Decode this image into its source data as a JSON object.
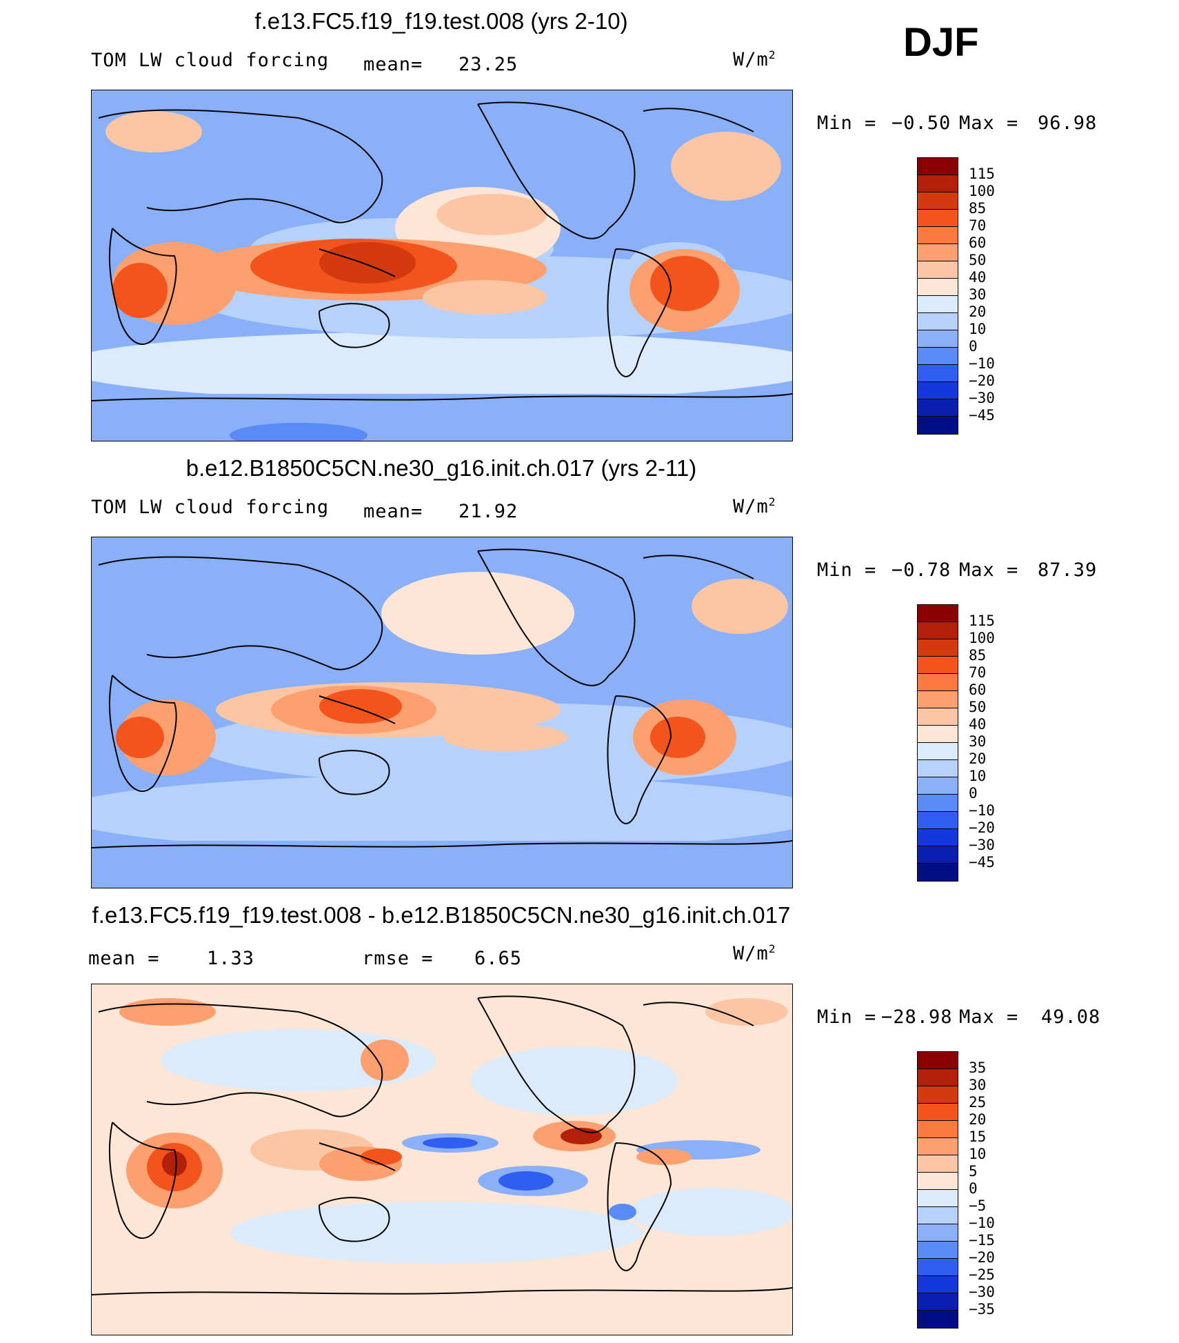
{
  "season": "DJF",
  "unit": "W/m",
  "unit_exp": "2",
  "panels": [
    {
      "title": "f.e13.FC5.f19_f19.test.008 (yrs 2-10)",
      "variable": "TOM LW cloud forcing",
      "stat1_label": "mean=",
      "stat1_value": "23.25",
      "min_label": "Min =",
      "min_value": "−0.50",
      "max_label": "Max =",
      "max_value": "96.98"
    },
    {
      "title": "b.e12.B1850C5CN.ne30_g16.init.ch.017 (yrs 2-11)",
      "variable": "TOM LW cloud forcing",
      "stat1_label": "mean=",
      "stat1_value": "21.92",
      "min_label": "Min =",
      "min_value": "−0.78",
      "max_label": "Max =",
      "max_value": "87.39"
    },
    {
      "title": "f.e13.FC5.f19_f19.test.008 - b.e12.B1850C5CN.ne30_g16.init.ch.017",
      "stat1_label": "mean =",
      "stat1_value": "1.33",
      "stat2_label": "rmse =",
      "stat2_value": "6.65",
      "min_label": "Min =",
      "min_value": "−28.98",
      "max_label": "Max =",
      "max_value": "49.08"
    }
  ],
  "colorbar_abs": {
    "labels": [
      "115",
      "100",
      "85",
      "70",
      "60",
      "50",
      "40",
      "30",
      "20",
      "10",
      "0",
      "−10",
      "−20",
      "−30",
      "−45"
    ],
    "colors": [
      "#8b0000",
      "#b2200a",
      "#d43a10",
      "#f2541c",
      "#fc7a40",
      "#fda070",
      "#fcc6a4",
      "#fde6d6",
      "#dbebfb",
      "#b6d1fb",
      "#8ab0f9",
      "#5a8af5",
      "#2f5ef0",
      "#1438dc",
      "#0a1fb0",
      "#020e84"
    ]
  },
  "colorbar_diff": {
    "labels": [
      "35",
      "30",
      "25",
      "20",
      "15",
      "10",
      "5",
      "0",
      "−5",
      "−10",
      "−15",
      "−20",
      "−25",
      "−30",
      "−35"
    ],
    "colors": [
      "#8b0000",
      "#b2200a",
      "#d43a10",
      "#f2541c",
      "#fc7a40",
      "#fda070",
      "#fcc6a4",
      "#fde6d6",
      "#dbebfb",
      "#b6d1fb",
      "#8ab0f9",
      "#5a8af5",
      "#2f5ef0",
      "#1438dc",
      "#0a1fb0",
      "#020e84"
    ]
  }
}
